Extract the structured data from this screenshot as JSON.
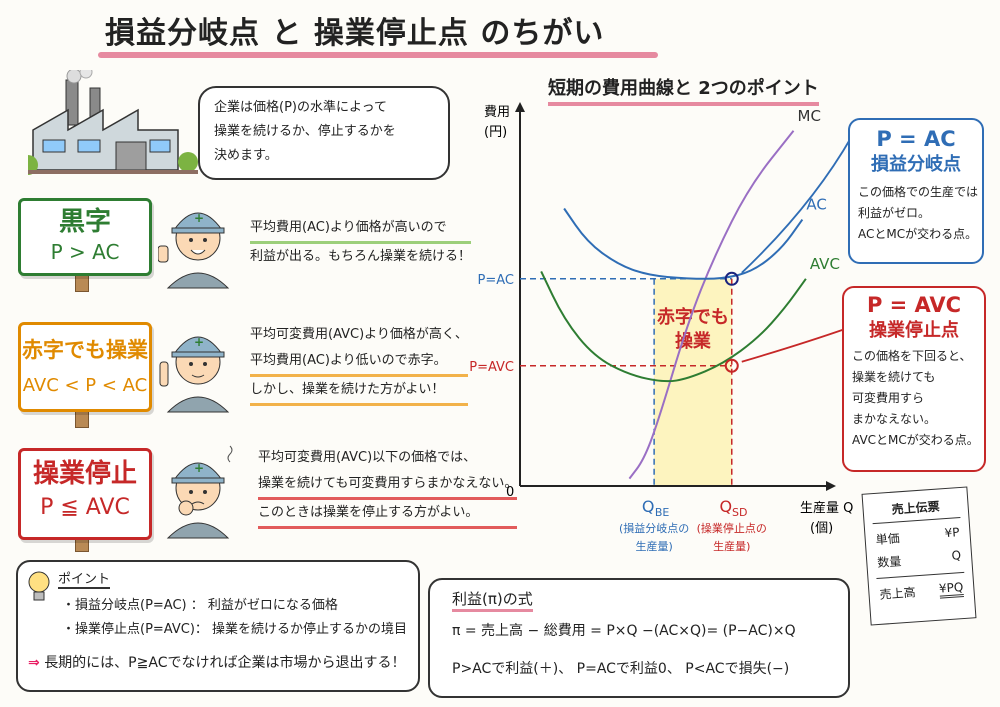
{
  "title": "損益分岐点 と 操業停止点 のちがい",
  "intro": {
    "lines": [
      "企業は価格(P)の水準によって",
      "操業を続けるか、停止するかを",
      "決めます。"
    ]
  },
  "cases": [
    {
      "sign_title": "黒字",
      "sign_formula": "P > AC",
      "lines": [
        "平均費用(AC)より価格が高いので",
        "利益が出る。もちろん操業を続ける！"
      ]
    },
    {
      "sign_title": "赤字でも操業",
      "sign_formula": "AVC < P < AC",
      "lines": [
        "平均可変費用(AVC)より価格が高く、",
        "平均費用(AC)より低いので赤字。",
        "しかし、操業を続けた方がよい！"
      ]
    },
    {
      "sign_title": "操業停止",
      "sign_formula": "P ≦ AVC",
      "lines": [
        "平均可変費用(AVC)以下の価格では、",
        "操業を続けても可変費用すらまかなえない。",
        "このときは操業を停止する方がよい。"
      ]
    }
  ],
  "chart_title": "短期の費用曲線と 2つのポイント",
  "chart_data": {
    "type": "line",
    "ylabel_lines": [
      "費用",
      "(円)"
    ],
    "xlabel_lines": [
      "生産量 Q",
      "(個)"
    ],
    "origin_label": "0",
    "series": [
      {
        "name": "MC",
        "color": "#9a6fc4",
        "points": [
          [
            0.62,
            0.02
          ],
          [
            0.7,
            0.07
          ],
          [
            0.78,
            0.17
          ],
          [
            0.95,
            0.44
          ],
          [
            1.1,
            0.62
          ],
          [
            1.3,
            0.81
          ],
          [
            1.55,
            0.96
          ]
        ]
      },
      {
        "name": "AC",
        "color": "#2f6db5",
        "points": [
          [
            0.25,
            0.75
          ],
          [
            0.38,
            0.66
          ],
          [
            0.55,
            0.6
          ],
          [
            0.72,
            0.57
          ],
          [
            0.95,
            0.56
          ],
          [
            1.15,
            0.56
          ],
          [
            1.32,
            0.58
          ],
          [
            1.48,
            0.64
          ],
          [
            1.6,
            0.72
          ]
        ]
      },
      {
        "name": "AVC",
        "color": "#2e7d32",
        "points": [
          [
            0.12,
            0.58
          ],
          [
            0.25,
            0.45
          ],
          [
            0.42,
            0.35
          ],
          [
            0.62,
            0.3
          ],
          [
            0.82,
            0.28
          ],
          [
            0.95,
            0.29
          ],
          [
            1.15,
            0.33
          ],
          [
            1.35,
            0.4
          ],
          [
            1.5,
            0.48
          ],
          [
            1.62,
            0.56
          ]
        ]
      }
    ],
    "price_levels": [
      {
        "label": "P=AC",
        "value": 0.56,
        "color": "#2f6db5"
      },
      {
        "label": "P=AVC",
        "value": 0.325,
        "color": "#c62828"
      }
    ],
    "quantities": [
      {
        "main": "Q",
        "sub": "BE",
        "caption": [
          "(損益分岐点の",
          "生産量)"
        ],
        "value": 0.76,
        "color": "#2f6db5"
      },
      {
        "main": "Q",
        "sub": "SD",
        "caption": [
          "(操業停止点の",
          "生産量)"
        ],
        "value": 1.2,
        "color": "#c62828"
      }
    ],
    "shaded_label": [
      "赤字でも",
      "操業"
    ],
    "xlim": [
      0,
      1.7
    ],
    "ylim": [
      0,
      1.0
    ]
  },
  "callout_ac": {
    "title1": "P = AC",
    "title2": "損益分岐点",
    "lines": [
      "この価格での生産では",
      "利益がゼロ。",
      "ACとMCが交わる点。"
    ]
  },
  "callout_avc": {
    "title1": "P = AVC",
    "title2": "操業停止点",
    "lines": [
      "この価格を下回ると、",
      "操業を続けても",
      "可変費用すら",
      "まかなえない。",
      "AVCとMCが交わる点。"
    ]
  },
  "receipt": {
    "title": "売上伝票",
    "rows": [
      [
        "単価",
        "¥P"
      ],
      [
        "数量",
        "Q"
      ]
    ],
    "total": [
      "売上高",
      "¥PQ"
    ]
  },
  "point_box": {
    "label": "ポイント",
    "items": [
      "・損益分岐点(P=AC) ： 利益がゼロになる価格",
      "・操業停止点(P=AVC)： 操業を続けるか停止するかの境目"
    ],
    "conclusion_arrow": "⇒",
    "conclusion": "長期的には、P≧ACでなければ企業は市場から退出する！"
  },
  "profit_box": {
    "title": "利益(π)の式",
    "formula": "π = 売上高 − 総費用 = P×Q −(AC×Q)= (P−AC)×Q",
    "cases": "P>ACで利益(＋)、 P=ACで利益0、 P<ACで損失(−)"
  },
  "colors": {
    "green": "#2e7d32",
    "orange": "#e08a00",
    "red": "#c62828",
    "blue": "#2f6db5",
    "purple": "#9a6fc4",
    "pink": "#e68aa0"
  }
}
